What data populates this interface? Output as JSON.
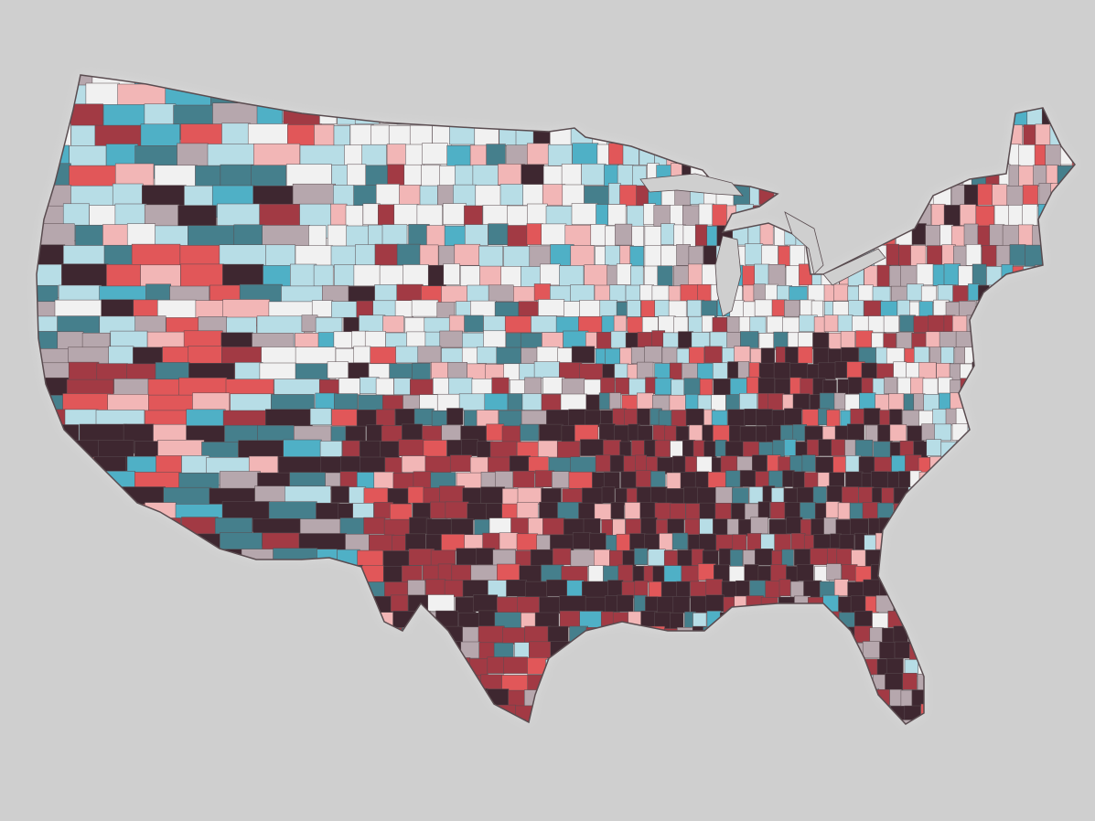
{
  "map": {
    "type": "choropleth",
    "region": "contiguous-united-states",
    "unit": "county",
    "legend": null,
    "background_color": "#cfcfcf",
    "border_color": "#5a4c50",
    "palette": [
      {
        "name": "class-1",
        "color": "#f1f1f1"
      },
      {
        "name": "class-2",
        "color": "#b7dde6"
      },
      {
        "name": "class-3",
        "color": "#4fb0c6"
      },
      {
        "name": "class-4",
        "color": "#457f8c"
      },
      {
        "name": "class-5",
        "color": "#b6a7ad"
      },
      {
        "name": "class-6",
        "color": "#f2b6b6"
      },
      {
        "name": "class-7",
        "color": "#e15759"
      },
      {
        "name": "class-8",
        "color": "#a23a44"
      },
      {
        "name": "class-9",
        "color": "#3e2730"
      }
    ],
    "regional_pattern": [
      {
        "region": "northern-plains-and-upper-midwest",
        "dominant": [
          "class-1",
          "class-2"
        ]
      },
      {
        "region": "pacific-northwest",
        "dominant": [
          "class-3",
          "class-4",
          "class-5"
        ]
      },
      {
        "region": "great-basin",
        "dominant": [
          "class-7",
          "class-9"
        ]
      },
      {
        "region": "southwest",
        "dominant": [
          "class-4",
          "class-9"
        ]
      },
      {
        "region": "texas",
        "dominant": [
          "class-8",
          "class-9"
        ]
      },
      {
        "region": "deep-south-and-appalachia",
        "dominant": [
          "class-9",
          "class-8"
        ]
      },
      {
        "region": "northeast",
        "dominant": [
          "class-1",
          "class-5",
          "class-6"
        ]
      },
      {
        "region": "florida",
        "dominant": [
          "class-5",
          "class-9"
        ]
      }
    ]
  }
}
